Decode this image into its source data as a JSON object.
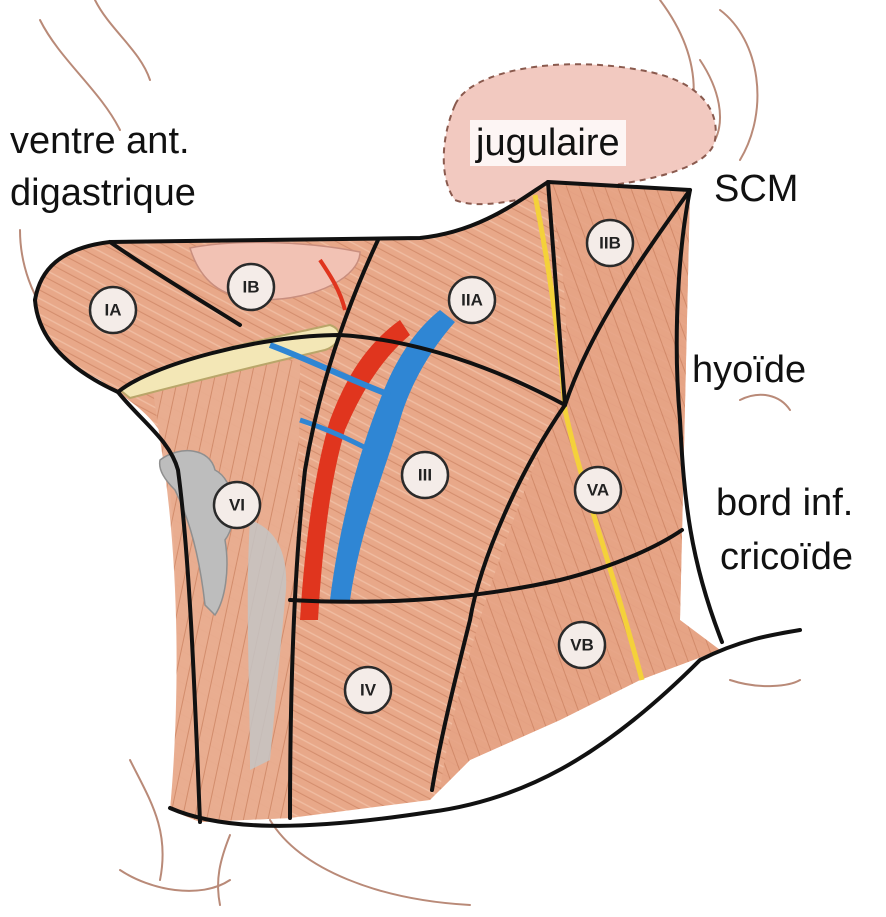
{
  "labels": {
    "digastric_line1": "ventre ant.",
    "digastric_line2": "digastrique",
    "jugular": "jugulaire",
    "scm": "SCM",
    "hyoid": "hyoïde",
    "cricoid_line1": "bord inf.",
    "cricoid_line2": "cricoïde"
  },
  "levels": [
    "IA",
    "IB",
    "IIA",
    "IIB",
    "III",
    "IV",
    "VA",
    "VB",
    "VI"
  ],
  "colors": {
    "muscle": "#e8a889",
    "muscle_dark": "#c9805f",
    "muscle_stripe": "#d48e6e",
    "artery": "#e0351e",
    "vein": "#2f86d4",
    "nerve": "#f4d13a",
    "bone": "#f3e7b6",
    "cartilage": "#bdbdbd",
    "gland": "#f2c9c0",
    "boundary": "#111111",
    "skin_outline": "#b98a78"
  }
}
